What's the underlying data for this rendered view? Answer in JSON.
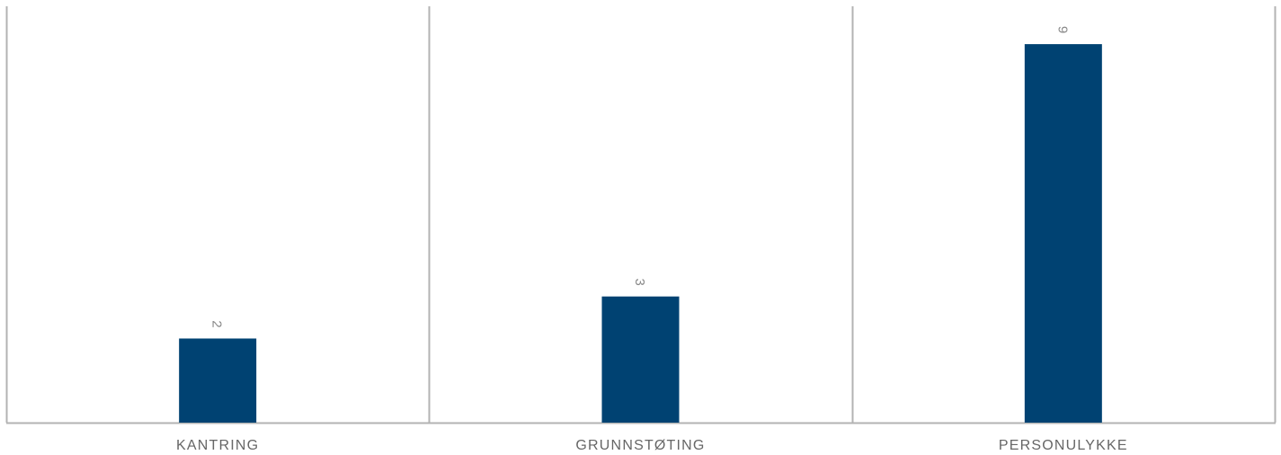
{
  "colors": {
    "bar": "#004272",
    "frame": "#b3b3b3",
    "label": "#666666",
    "value_label": "#888888"
  },
  "chart_data": {
    "type": "bar",
    "categories": [
      "KANTRING",
      "GRUNNSTØTING",
      "PERSONULYKKE"
    ],
    "values": [
      2,
      3,
      9
    ],
    "ylim": [
      0,
      9.9
    ],
    "grid": false,
    "legend": "none",
    "data_labels": true,
    "title": "",
    "xlabel": "",
    "ylabel": ""
  }
}
